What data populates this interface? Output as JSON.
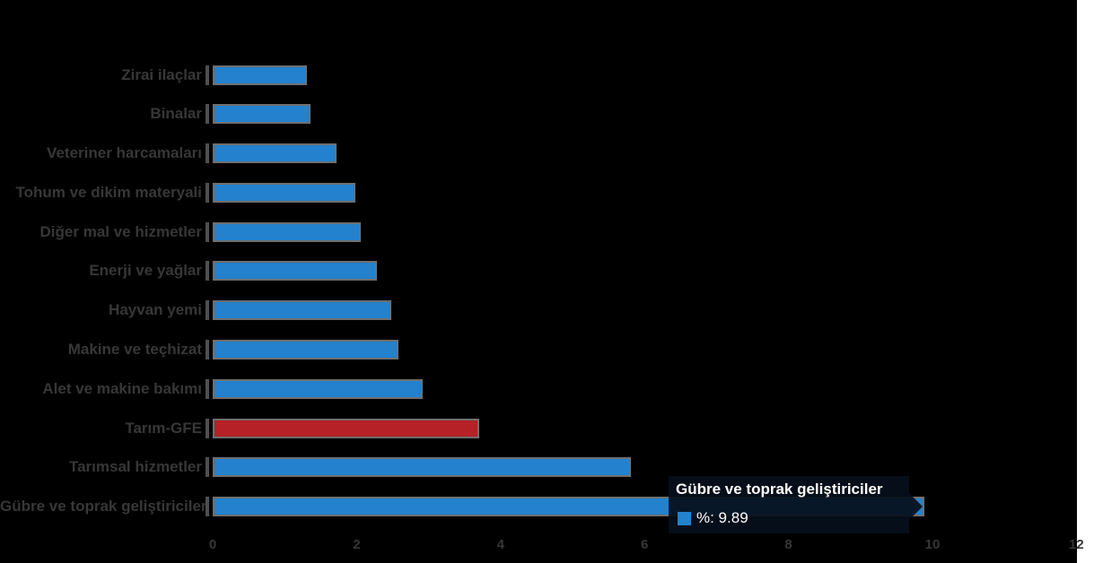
{
  "background": "#000000",
  "chart_data": {
    "type": "bar",
    "orientation": "horizontal",
    "title": "",
    "xlabel": "",
    "ylabel": "",
    "grid": false,
    "legend_position": "none",
    "categories": [
      "Zirai ilaçlar",
      "Binalar",
      "Veteriner harcamaları",
      "Tohum ve dikim materyali",
      "Diğer mal ve hizmetler",
      "Enerji ve yağlar",
      "Hayvan yemi",
      "Makine ve teçhizat",
      "Alet ve makine bakımı",
      "Tarım-GFE",
      "Tarımsal hizmetler",
      "Gübre ve toprak geliştiriciler"
    ],
    "values": [
      1.31,
      1.36,
      1.72,
      1.98,
      2.06,
      2.28,
      2.48,
      2.58,
      2.92,
      3.7,
      5.81,
      9.89
    ],
    "highlight_index": 9,
    "xlim": [
      0,
      12
    ],
    "x_ticks": [
      "0",
      "2",
      "4",
      "6",
      "8",
      "10",
      "12"
    ],
    "colors": {
      "bar": "#2381cd",
      "highlight": "#b52126",
      "bar_border": "#6f6f6f",
      "label_text": "#373737",
      "axis_text": "#373737",
      "tick_notch": "#4f4f4f"
    }
  },
  "tooltip": {
    "title": "Gübre ve toprak geliştiriciler",
    "value_label": "%: 9.89",
    "marker_color": "#2381cd",
    "bg": "rgba(6,15,27,0.93)",
    "text_color": "#ffffff"
  }
}
